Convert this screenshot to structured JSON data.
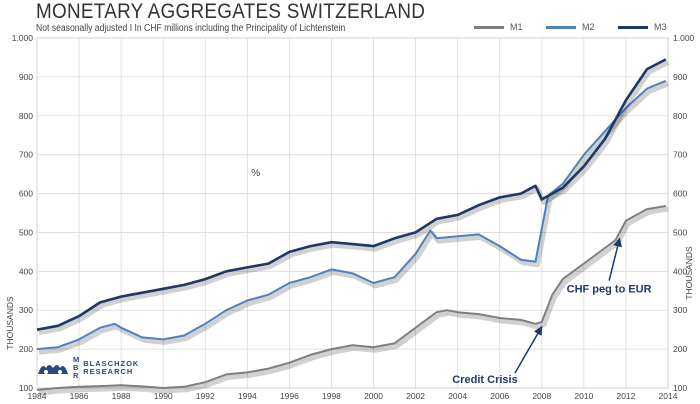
{
  "header": {
    "title": "MONETARY AGGREGATES SWITZERLAND",
    "subtitle": "Not seasonally adjusted I In CHF millions including the Principality of Lichtenstein"
  },
  "stray_label": "%",
  "logo": {
    "letters": [
      "M",
      "B",
      "R"
    ],
    "lines": [
      "BLASCHZOK",
      "RESEARCH"
    ]
  },
  "chart_data": {
    "type": "line",
    "title": "MONETARY AGGREGATES SWITZERLAND",
    "ylabel_left": "THOUSANDS",
    "ylabel_right": "THOUSANDS",
    "xlim": [
      1984,
      2014
    ],
    "ylim": [
      100,
      1000
    ],
    "x_ticks": [
      "1984",
      "1986",
      "1988",
      "1990",
      "1992",
      "1994",
      "1996",
      "1998",
      "2000",
      "2002",
      "2004",
      "2006",
      "2008",
      "2010",
      "2012",
      "2014"
    ],
    "y_ticks_left": [
      "100",
      "200",
      "300",
      "400",
      "500",
      "600",
      "700",
      "800",
      "900",
      "1.000"
    ],
    "y_ticks_right": [
      "100",
      "200",
      "300",
      "400",
      "500",
      "600",
      "700",
      "800",
      "900",
      "1.000"
    ],
    "series": [
      {
        "name": "M1",
        "color": "#7f7f7f",
        "x": [
          1984,
          1985,
          1986,
          1987,
          1988,
          1989,
          1990,
          1991,
          1992,
          1993,
          1994,
          1995,
          1996,
          1997,
          1998,
          1999,
          2000,
          2001,
          2002,
          2003,
          2003.5,
          2004,
          2005,
          2006,
          2007,
          2007.7,
          2008,
          2008.5,
          2009,
          2010,
          2011,
          2011.5,
          2012,
          2013,
          2013.9
        ],
        "values": [
          95,
          100,
          103,
          105,
          107,
          104,
          100,
          103,
          115,
          135,
          140,
          150,
          165,
          185,
          200,
          210,
          205,
          215,
          255,
          295,
          300,
          295,
          290,
          280,
          275,
          265,
          270,
          340,
          380,
          420,
          460,
          480,
          530,
          560,
          568
        ]
      },
      {
        "name": "M2",
        "color": "#4f81bd",
        "x": [
          1984,
          1985,
          1986,
          1987,
          1987.7,
          1988,
          1989,
          1990,
          1991,
          1992,
          1993,
          1994,
          1995,
          1996,
          1997,
          1998,
          1999,
          2000,
          2001,
          2002,
          2002.7,
          2003,
          2004,
          2005,
          2006,
          2007,
          2007.7,
          2008,
          2008.3,
          2009,
          2010,
          2011,
          2012,
          2013,
          2013.9
        ],
        "values": [
          200,
          205,
          225,
          255,
          265,
          255,
          230,
          225,
          235,
          265,
          300,
          325,
          340,
          370,
          385,
          405,
          395,
          370,
          385,
          445,
          505,
          485,
          490,
          495,
          465,
          430,
          425,
          510,
          595,
          625,
          700,
          760,
          820,
          870,
          890
        ]
      },
      {
        "name": "M3",
        "color": "#1f3864",
        "x": [
          1984,
          1985,
          1986,
          1987,
          1988,
          1989,
          1990,
          1991,
          1992,
          1993,
          1994,
          1995,
          1996,
          1997,
          1998,
          1999,
          2000,
          2001,
          2002,
          2003,
          2004,
          2005,
          2006,
          2007,
          2007.7,
          2008,
          2009,
          2010,
          2011,
          2012,
          2013,
          2013.9
        ],
        "values": [
          250,
          260,
          285,
          320,
          335,
          345,
          355,
          365,
          380,
          400,
          410,
          420,
          450,
          465,
          475,
          470,
          465,
          485,
          500,
          535,
          545,
          570,
          590,
          600,
          620,
          585,
          615,
          670,
          740,
          840,
          920,
          945
        ]
      }
    ],
    "annotations": [
      {
        "text": "Credit Crisis",
        "x": 2008.0,
        "y": 268,
        "label_x": 2005.3,
        "label_y": 113
      },
      {
        "text": "CHF peg to EUR",
        "x": 2011.7,
        "y": 495,
        "label_x": 2011.2,
        "label_y": 345
      }
    ],
    "legend": "top-right"
  }
}
